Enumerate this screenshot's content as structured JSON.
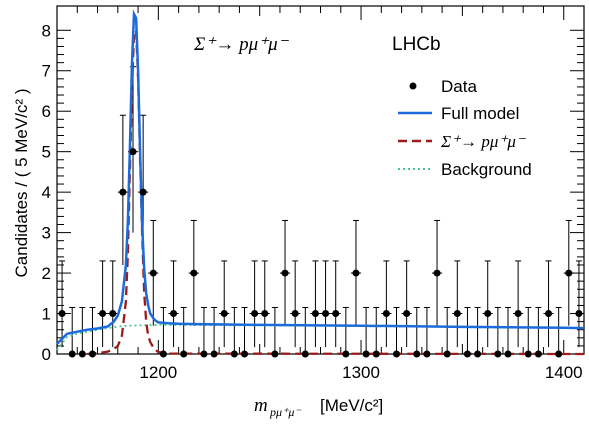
{
  "chart_data": {
    "type": "scatter",
    "title": "Σ⁺→ pμ⁺μ⁻",
    "experiment": "LHCb",
    "xlabel": "m_{pμ⁺μ⁻} [MeV/c²]",
    "xlabel_main": "m",
    "xlabel_sub": "pμ⁺μ⁻",
    "xlabel_unit": "[MeV/c²]",
    "ylabel": "Candidates / ( 5 MeV/c² )",
    "xlim": [
      1150,
      1410
    ],
    "ylim": [
      0,
      8.6
    ],
    "x_ticks": [
      1200,
      1300,
      1400
    ],
    "y_ticks": [
      0,
      1,
      2,
      3,
      4,
      5,
      6,
      7,
      8
    ],
    "grid": false,
    "legend_position": "top-right",
    "legend": [
      {
        "label": "Data",
        "marker": "dot",
        "color": "#000000"
      },
      {
        "label": "Full model",
        "line": "solid",
        "color": "#1c6bdc"
      },
      {
        "label": "Σ⁺→ pμ⁺μ⁻",
        "line": "dashed",
        "color": "#9e1b1b"
      },
      {
        "label": "Background",
        "line": "dotted",
        "color": "#46c890"
      }
    ],
    "bin_width": 5,
    "data_points": {
      "x": [
        1152.5,
        1157.5,
        1162.5,
        1167.5,
        1172.5,
        1177.5,
        1182.5,
        1187.5,
        1192.5,
        1197.5,
        1202.5,
        1207.5,
        1212.5,
        1217.5,
        1222.5,
        1227.5,
        1232.5,
        1237.5,
        1242.5,
        1247.5,
        1252.5,
        1257.5,
        1262.5,
        1267.5,
        1272.5,
        1277.5,
        1282.5,
        1287.5,
        1292.5,
        1297.5,
        1302.5,
        1307.5,
        1312.5,
        1317.5,
        1322.5,
        1327.5,
        1332.5,
        1337.5,
        1342.5,
        1347.5,
        1352.5,
        1357.5,
        1362.5,
        1367.5,
        1372.5,
        1377.5,
        1382.5,
        1387.5,
        1392.5,
        1397.5,
        1402.5,
        1407.5
      ],
      "y": [
        1,
        0,
        0,
        0,
        1,
        1,
        4,
        5,
        4,
        2,
        0,
        1,
        0,
        2,
        0,
        0,
        1,
        0,
        0,
        1,
        1,
        0,
        2,
        1,
        0,
        1,
        1,
        1,
        0,
        2,
        0,
        0,
        1,
        0,
        1,
        0,
        0,
        2,
        0,
        1,
        0,
        0,
        1,
        0,
        0,
        1,
        0,
        0,
        1,
        0,
        2,
        1
      ]
    },
    "series": [
      {
        "name": "Full model",
        "x": [
          1150,
          1155,
          1160,
          1165,
          1170,
          1175,
          1178,
          1180,
          1182,
          1184,
          1185,
          1186,
          1187,
          1188,
          1189,
          1190,
          1191,
          1192,
          1193,
          1194,
          1195,
          1196,
          1198,
          1200,
          1205,
          1210,
          1220,
          1250,
          1300,
          1350,
          1400,
          1410
        ],
        "y": [
          0.25,
          0.5,
          0.55,
          0.6,
          0.63,
          0.68,
          0.8,
          0.95,
          1.3,
          2.2,
          3.3,
          5.2,
          7.2,
          8.4,
          8.3,
          7.0,
          5.0,
          3.2,
          2.1,
          1.5,
          1.2,
          1.0,
          0.85,
          0.78,
          0.76,
          0.75,
          0.74,
          0.72,
          0.7,
          0.67,
          0.65,
          0.64
        ]
      },
      {
        "name": "Σ⁺→ pμ⁺μ⁻",
        "x": [
          1165,
          1170,
          1175,
          1178,
          1180,
          1182,
          1184,
          1185,
          1186,
          1187,
          1188,
          1189,
          1190,
          1191,
          1192,
          1193,
          1194,
          1195,
          1196,
          1198,
          1200,
          1205,
          1410
        ],
        "y": [
          0,
          0.02,
          0.06,
          0.12,
          0.2,
          0.45,
          1.3,
          2.5,
          4.6,
          6.6,
          7.9,
          8.0,
          6.8,
          4.8,
          3.0,
          1.5,
          0.8,
          0.45,
          0.3,
          0.12,
          0.05,
          0.01,
          0
        ]
      },
      {
        "name": "Background",
        "x": [
          1150,
          1155,
          1160,
          1165,
          1170,
          1175,
          1180,
          1185,
          1200,
          1250,
          1300,
          1350,
          1400,
          1410
        ],
        "y": [
          0.1,
          0.42,
          0.5,
          0.55,
          0.6,
          0.64,
          0.68,
          0.7,
          0.72,
          0.71,
          0.69,
          0.67,
          0.65,
          0.64
        ]
      }
    ]
  }
}
